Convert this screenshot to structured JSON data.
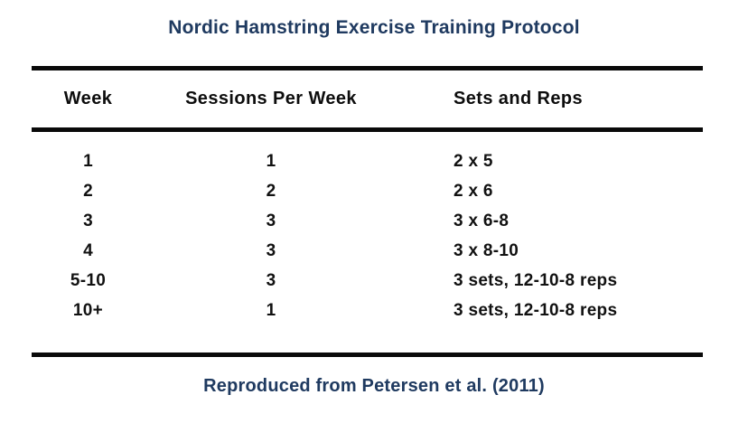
{
  "chart_data": {
    "type": "table",
    "title": "Nordic Hamstring Exercise Training Protocol",
    "columns": [
      "Week",
      "Sessions Per Week",
      "Sets and Reps"
    ],
    "rows": [
      [
        "1",
        "1",
        "2 x 5"
      ],
      [
        "2",
        "2",
        "2 x 6"
      ],
      [
        "3",
        "3",
        "3 x 6-8"
      ],
      [
        "4",
        "3",
        "3 x 8-10"
      ],
      [
        "5-10",
        "3",
        "3 sets, 12-10-8 reps"
      ],
      [
        "10+",
        "1",
        "3 sets, 12-10-8 reps"
      ]
    ],
    "caption": "Reproduced from Petersen et al. (2011)",
    "layout": {
      "grid": "off",
      "rules": "three horizontal black rules: above header, below header, below body"
    },
    "colors": {
      "title_text": "#1f3a60",
      "caption_text": "#1f3a60",
      "table_text": "#111111",
      "rule": "#0a0a0a",
      "background": "#ffffff"
    }
  }
}
